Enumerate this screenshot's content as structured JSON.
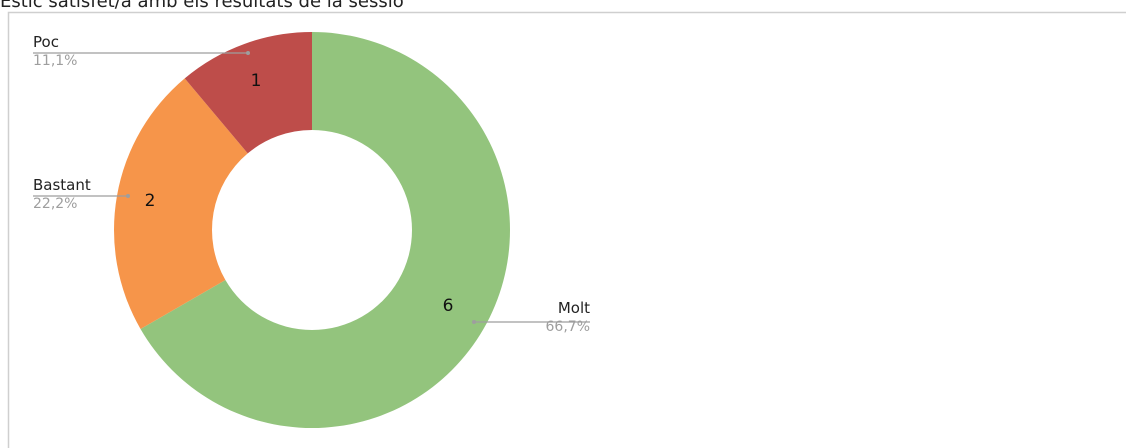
{
  "chart_data": {
    "type": "pie",
    "title": "Estic satisfet/a amb els resultats de la sessió",
    "categories": [
      "Molt",
      "Bastant",
      "Poc"
    ],
    "values": [
      6,
      2,
      1
    ],
    "percent_labels": [
      "66,7%",
      "22,2%",
      "11,1%"
    ],
    "colors": [
      "#93c47d",
      "#f6954a",
      "#be4d4a"
    ],
    "donut": true
  }
}
